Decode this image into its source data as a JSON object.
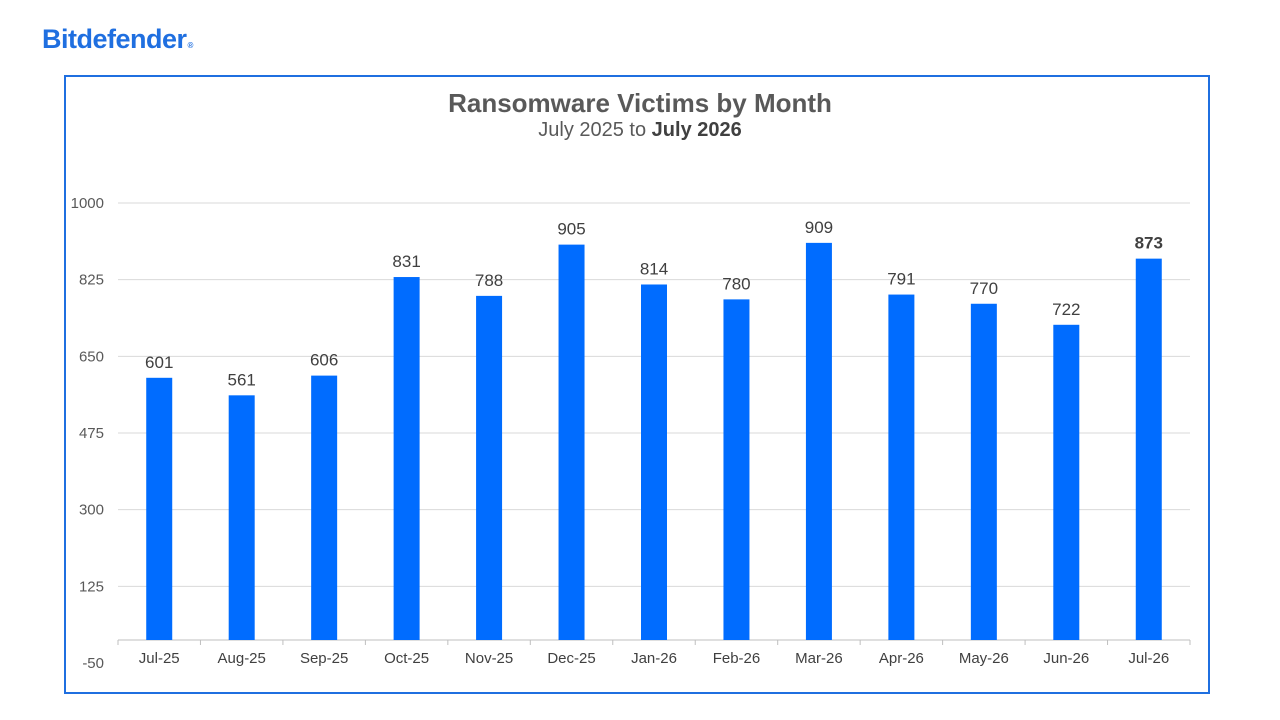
{
  "brand": {
    "name": "Bitdefender",
    "mark": "®",
    "color": "#1f6fe0"
  },
  "chart_data": {
    "type": "bar",
    "title": "Ransomware Victims by Month",
    "subtitle_plain": "July 2025 to ",
    "subtitle_bold": "July 2026",
    "categories": [
      "Jul-25",
      "Aug-25",
      "Sep-25",
      "Oct-25",
      "Nov-25",
      "Dec-25",
      "Jan-26",
      "Feb-26",
      "Mar-26",
      "Apr-26",
      "May-26",
      "Jun-26",
      "Jul-26"
    ],
    "values": [
      601,
      561,
      606,
      831,
      788,
      905,
      814,
      780,
      909,
      791,
      770,
      722,
      873
    ],
    "highlight_last_label": true,
    "ylim": [
      -50,
      1000
    ],
    "yticks": [
      1000,
      825,
      650,
      475,
      300,
      125,
      -50
    ],
    "bar_color": "#006cff",
    "grid": true,
    "legend": "none"
  }
}
